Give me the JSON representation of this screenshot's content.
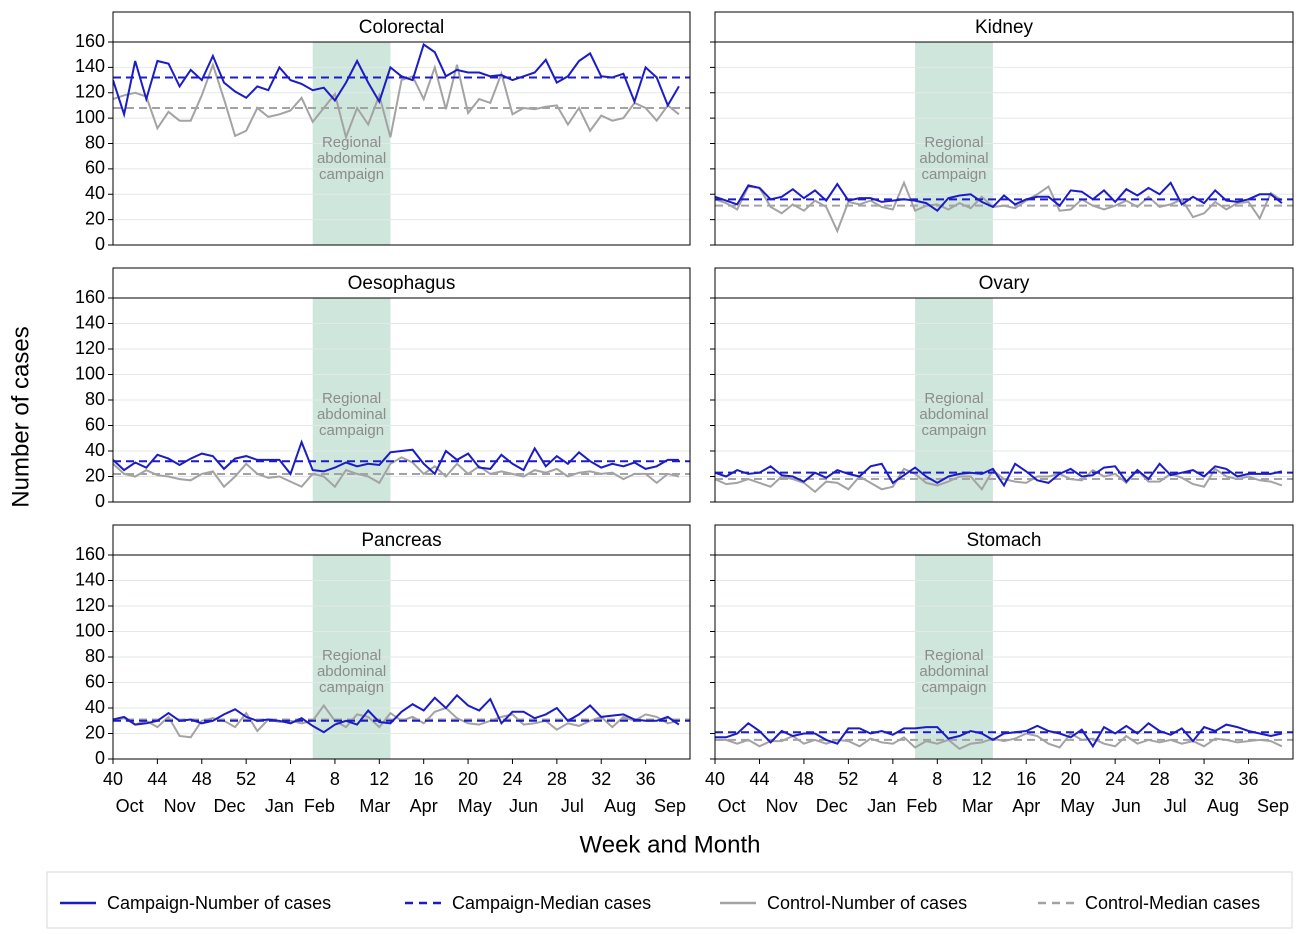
{
  "chart_data": {
    "type": "line",
    "y_label": "Number of cases",
    "x_label": "Week and Month",
    "xlim": [
      0,
      52
    ],
    "ylim": [
      0,
      160
    ],
    "yticks": [
      0,
      20,
      40,
      60,
      80,
      100,
      120,
      140,
      160
    ],
    "xticks": [
      {
        "value": 0,
        "label": "40"
      },
      {
        "value": 4,
        "label": "44"
      },
      {
        "value": 8,
        "label": "48"
      },
      {
        "value": 12,
        "label": "52"
      },
      {
        "value": 16,
        "label": "4"
      },
      {
        "value": 20,
        "label": "8"
      },
      {
        "value": 24,
        "label": "12"
      },
      {
        "value": 28,
        "label": "16"
      },
      {
        "value": 32,
        "label": "20"
      },
      {
        "value": 36,
        "label": "24"
      },
      {
        "value": 40,
        "label": "28"
      },
      {
        "value": 44,
        "label": "32"
      },
      {
        "value": 48,
        "label": "36"
      }
    ],
    "month_ticks": [
      {
        "value": 1.5,
        "label": "Oct"
      },
      {
        "value": 6,
        "label": "Nov"
      },
      {
        "value": 10.5,
        "label": "Dec"
      },
      {
        "value": 15,
        "label": "Jan"
      },
      {
        "value": 18.6,
        "label": "Feb"
      },
      {
        "value": 23.6,
        "label": "Mar"
      },
      {
        "value": 28,
        "label": "Apr"
      },
      {
        "value": 32.6,
        "label": "May"
      },
      {
        "value": 37,
        "label": "Jun"
      },
      {
        "value": 41.4,
        "label": "Jul"
      },
      {
        "value": 45.7,
        "label": "Aug"
      },
      {
        "value": 50.2,
        "label": "Sep"
      }
    ],
    "grid": true,
    "shade": {
      "range": [
        18,
        25
      ],
      "color": "#cfe6dc",
      "label": [
        "Regional",
        "abdominal",
        "campaign"
      ]
    },
    "legend": [
      {
        "name": "Campaign-Number of cases",
        "color": "#1c1cc6",
        "dashed": false
      },
      {
        "name": "Campaign-Median cases",
        "color": "#1c1cc6",
        "dashed": true
      },
      {
        "name": "Control-Number of cases",
        "color": "#a3a3a3",
        "dashed": false
      },
      {
        "name": "Control-Median cases",
        "color": "#a3a3a3",
        "dashed": true
      }
    ],
    "panels": [
      {
        "title": "Colorectal",
        "series": [
          {
            "values": [
              130,
              103,
              145,
              115,
              145,
              143,
              125,
              138,
              130,
              149,
              128,
              121,
              116,
              125,
              122,
              140,
              130,
              127,
              122,
              124,
              114,
              128,
              145,
              128,
              113,
              140,
              133,
              130,
              158,
              152,
              133,
              138,
              136,
              136,
              133,
              134,
              130,
              133,
              136,
              146,
              128,
              133,
              145,
              151,
              133,
              132,
              135,
              113,
              140,
              132,
              110,
              125
            ]
          },
          {
            "value": 132
          },
          {
            "values": [
              115,
              118,
              120,
              117,
              92,
              105,
              98,
              98,
              118,
              142,
              115,
              86,
              90,
              108,
              101,
              103,
              106,
              116,
              97,
              108,
              119,
              85,
              108,
              95,
              118,
              85,
              130,
              133,
              115,
              140,
              107,
              142,
              104,
              115,
              112,
              135,
              103,
              108,
              107,
              109,
              110,
              95,
              108,
              90,
              102,
              98,
              100,
              112,
              108,
              98,
              110,
              103
            ]
          },
          {
            "value": 108
          }
        ]
      },
      {
        "title": "Kidney",
        "series": [
          {
            "values": [
              38,
              35,
              32,
              47,
              45,
              36,
              38,
              44,
              37,
              43,
              35,
              48,
              35,
              37,
              37,
              34,
              35,
              36,
              35,
              33,
              27,
              37,
              39,
              40,
              34,
              30,
              39,
              32,
              36,
              38,
              38,
              31,
              43,
              42,
              36,
              43,
              34,
              44,
              39,
              45,
              40,
              49,
              32,
              38,
              33,
              43,
              35,
              34,
              36,
              40,
              40,
              33
            ]
          },
          {
            "value": 36
          },
          {
            "values": [
              36,
              33,
              28,
              46,
              45,
              30,
              25,
              32,
              27,
              35,
              30,
              11,
              34,
              32,
              35,
              30,
              28,
              49,
              27,
              31,
              32,
              28,
              33,
              29,
              38,
              30,
              31,
              29,
              35,
              40,
              46,
              27,
              28,
              36,
              31,
              28,
              31,
              35,
              30,
              38,
              30,
              32,
              36,
              22,
              25,
              34,
              28,
              33,
              34,
              21,
              41,
              35
            ]
          },
          {
            "value": 31
          }
        ]
      },
      {
        "title": "Oesophagus",
        "series": [
          {
            "values": [
              33,
              25,
              31,
              27,
              37,
              34,
              29,
              34,
              38,
              36,
              26,
              34,
              36,
              33,
              33,
              33,
              22,
              47,
              25,
              24,
              27,
              31,
              28,
              30,
              29,
              39,
              40,
              41,
              30,
              22,
              40,
              33,
              38,
              27,
              26,
              37,
              30,
              25,
              42,
              28,
              36,
              30,
              39,
              32,
              27,
              30,
              28,
              31,
              26,
              28,
              33,
              33
            ]
          },
          {
            "value": 32
          },
          {
            "values": [
              30,
              22,
              20,
              25,
              21,
              20,
              18,
              17,
              22,
              24,
              12,
              20,
              30,
              22,
              19,
              20,
              16,
              12,
              22,
              20,
              12,
              25,
              22,
              20,
              15,
              30,
              35,
              31,
              22,
              28,
              20,
              30,
              22,
              28,
              22,
              24,
              22,
              20,
              25,
              23,
              26,
              20,
              23,
              24,
              22,
              23,
              18,
              22,
              22,
              15,
              22,
              20
            ]
          },
          {
            "value": 22
          }
        ]
      },
      {
        "title": "Ovary",
        "series": [
          {
            "values": [
              23,
              20,
              25,
              22,
              23,
              28,
              21,
              20,
              16,
              23,
              19,
              25,
              22,
              20,
              28,
              30,
              15,
              21,
              27,
              20,
              15,
              20,
              22,
              23,
              22,
              26,
              13,
              30,
              24,
              17,
              15,
              22,
              26,
              20,
              21,
              27,
              28,
              16,
              25,
              18,
              30,
              21,
              23,
              25,
              20,
              28,
              26,
              20,
              22,
              22,
              22,
              24
            ]
          },
          {
            "value": 23
          },
          {
            "values": [
              18,
              14,
              15,
              18,
              15,
              12,
              20,
              18,
              15,
              8,
              16,
              15,
              10,
              20,
              15,
              10,
              12,
              26,
              22,
              15,
              13,
              16,
              20,
              20,
              10,
              25,
              18,
              16,
              15,
              20,
              20,
              22,
              18,
              17,
              25,
              20,
              22,
              15,
              25,
              16,
              16,
              22,
              19,
              14,
              12,
              26,
              20,
              18,
              20,
              17,
              16,
              13
            ]
          },
          {
            "value": 18
          }
        ]
      },
      {
        "title": "Pancreas",
        "series": [
          {
            "values": [
              31,
              33,
              27,
              28,
              30,
              36,
              30,
              31,
              28,
              30,
              35,
              39,
              33,
              30,
              31,
              30,
              28,
              32,
              26,
              21,
              27,
              30,
              27,
              38,
              29,
              28,
              37,
              43,
              38,
              48,
              40,
              50,
              42,
              38,
              47,
              28,
              37,
              37,
              32,
              35,
              40,
              30,
              35,
              42,
              33,
              34,
              35,
              31,
              30,
              30,
              33,
              27
            ]
          },
          {
            "value": 30
          },
          {
            "values": [
              30,
              32,
              27,
              30,
              25,
              33,
              18,
              17,
              30,
              32,
              30,
              25,
              36,
              22,
              31,
              29,
              30,
              28,
              30,
              42,
              30,
              25,
              35,
              33,
              25,
              36,
              30,
              33,
              28,
              37,
              40,
              32,
              28,
              27,
              30,
              33,
              35,
              27,
              28,
              30,
              23,
              28,
              26,
              30,
              33,
              25,
              33,
              30,
              35,
              33,
              28,
              30
            ]
          },
          {
            "value": 31
          }
        ]
      },
      {
        "title": "Stomach",
        "series": [
          {
            "values": [
              17,
              17,
              20,
              28,
              22,
              13,
              22,
              18,
              20,
              20,
              15,
              12,
              24,
              24,
              20,
              22,
              19,
              24,
              24,
              25,
              25,
              16,
              18,
              22,
              20,
              15,
              20,
              21,
              22,
              26,
              22,
              20,
              17,
              23,
              10,
              25,
              20,
              26,
              20,
              28,
              22,
              19,
              24,
              14,
              25,
              22,
              27,
              25,
              22,
              20,
              18,
              20
            ]
          },
          {
            "value": 21
          },
          {
            "values": [
              15,
              15,
              12,
              15,
              10,
              14,
              14,
              18,
              12,
              15,
              12,
              15,
              14,
              10,
              16,
              13,
              12,
              17,
              9,
              14,
              12,
              15,
              8,
              12,
              13,
              16,
              14,
              16,
              20,
              18,
              12,
              9,
              20,
              15,
              16,
              12,
              10,
              18,
              12,
              15,
              13,
              15,
              12,
              14,
              10,
              16,
              15,
              13,
              14,
              15,
              14,
              10
            ]
          },
          {
            "value": 15
          }
        ]
      }
    ]
  }
}
